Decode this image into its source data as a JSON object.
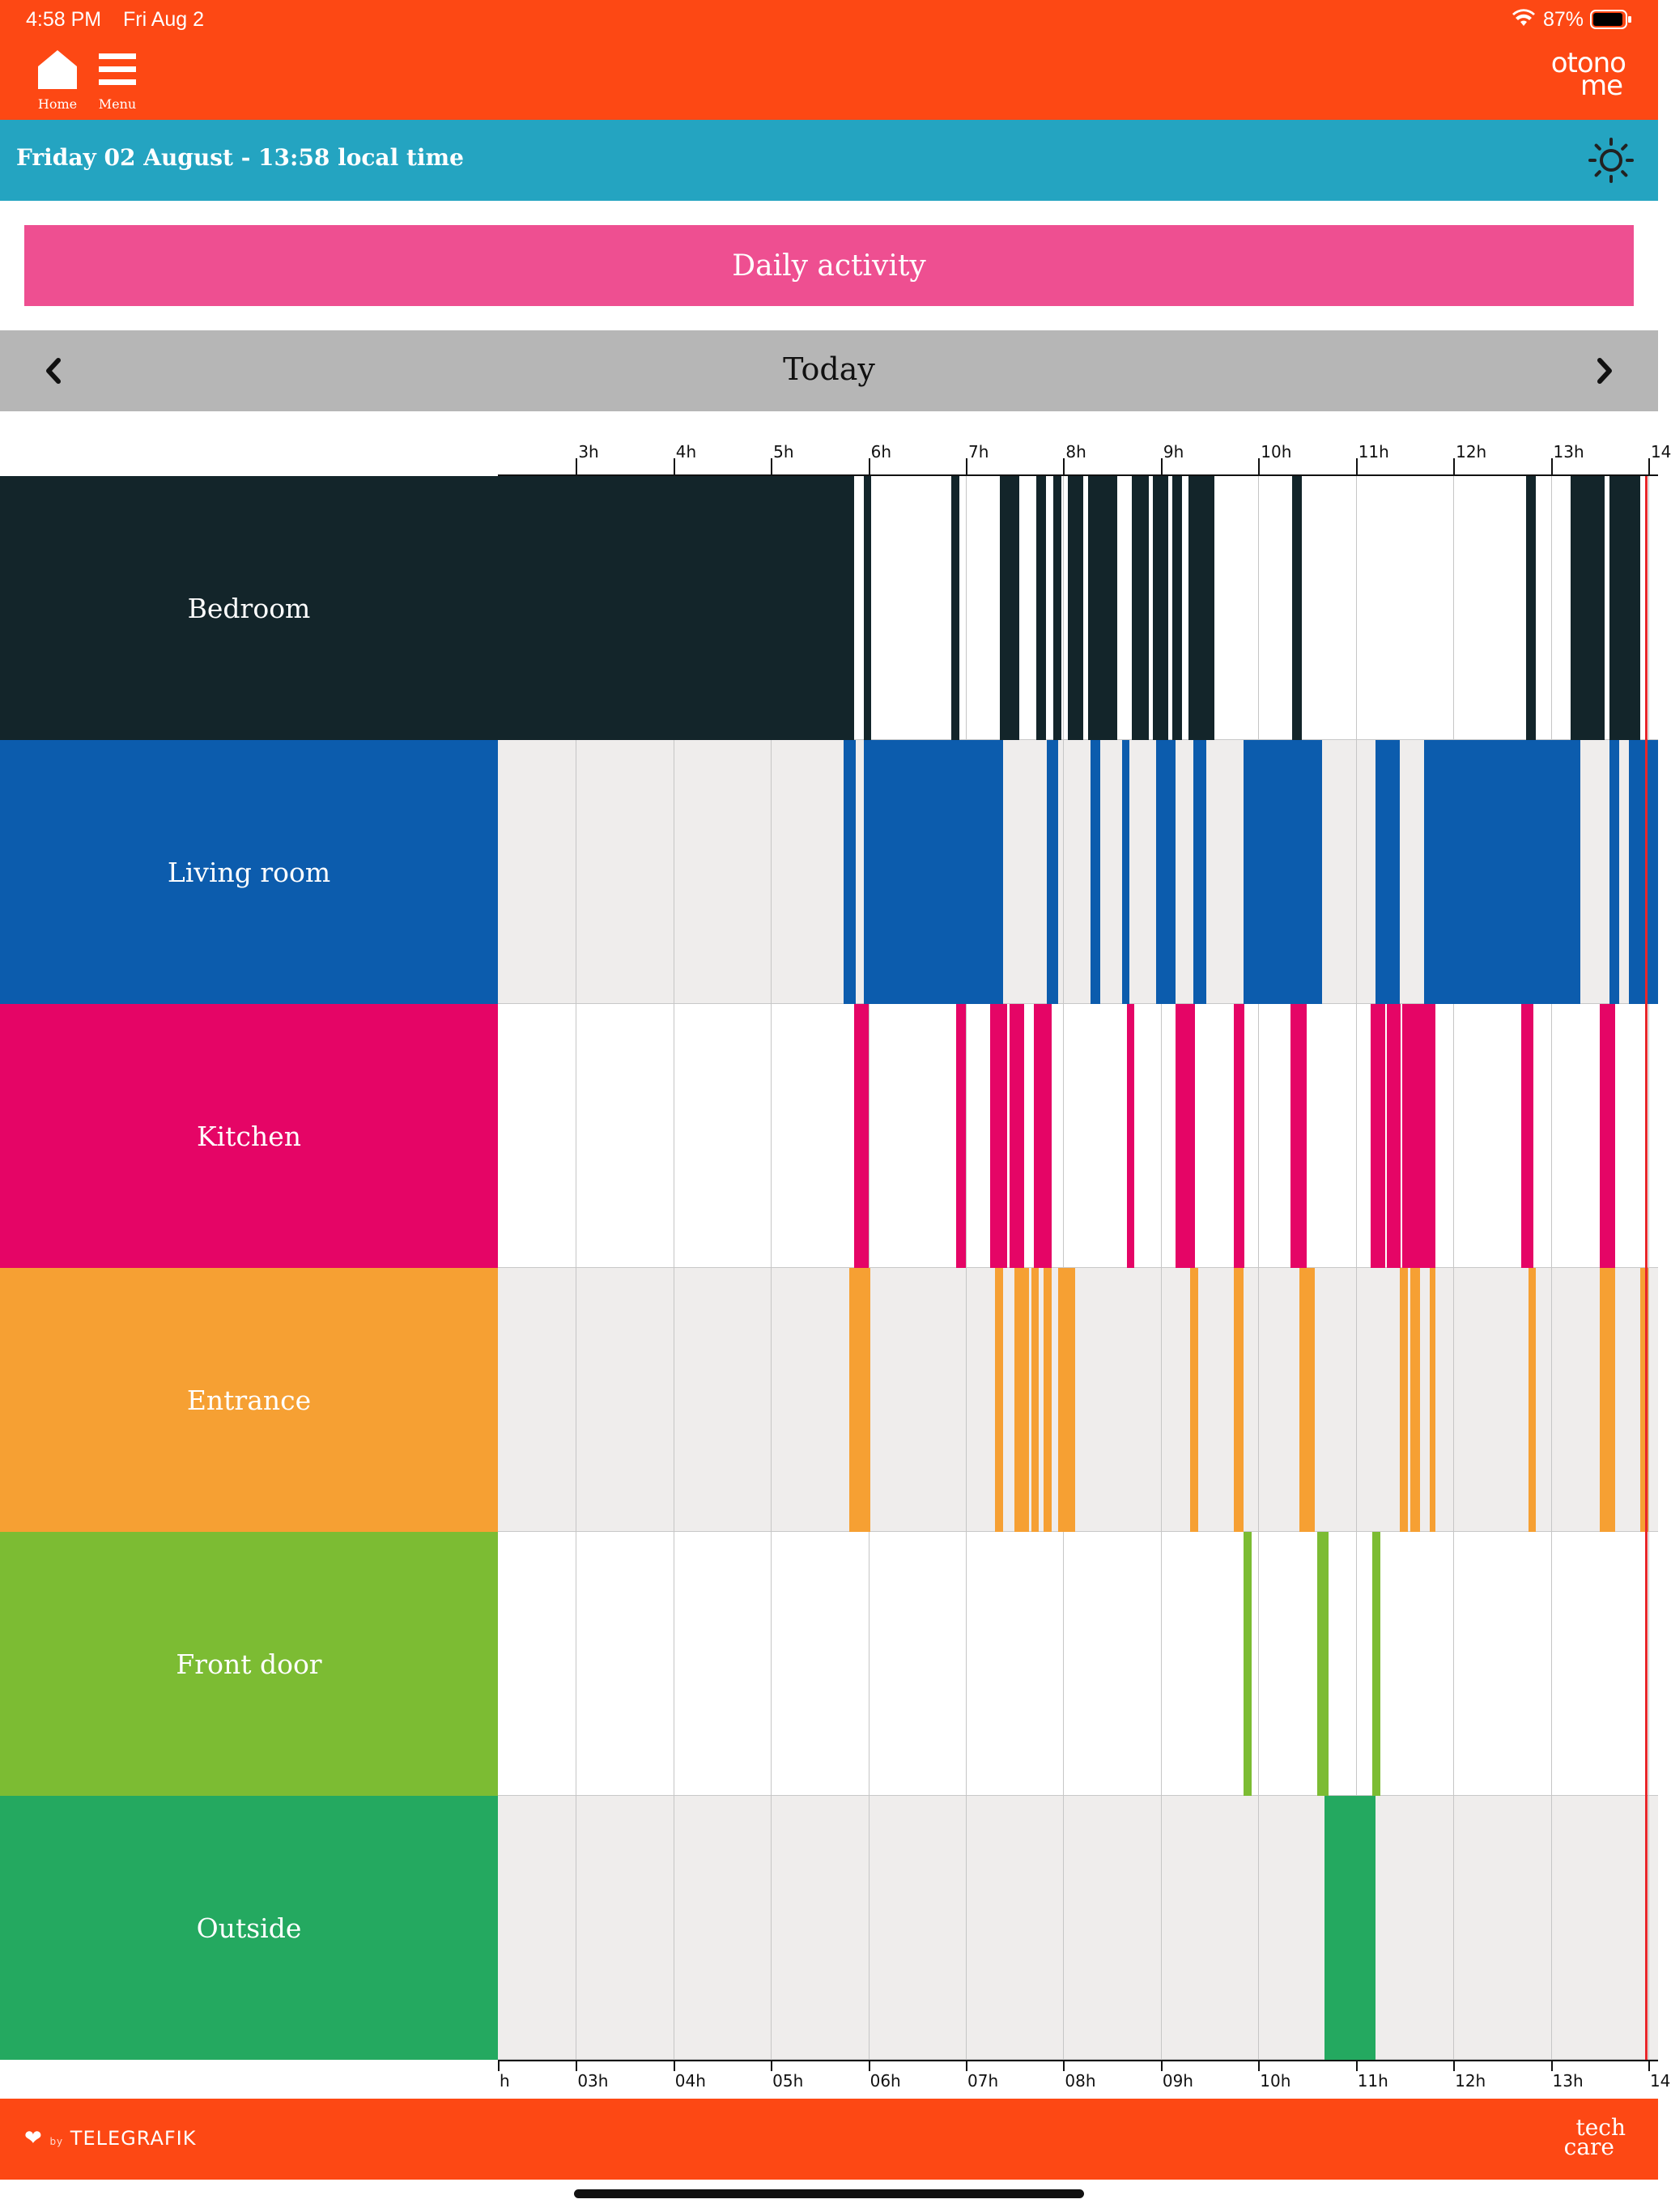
{
  "status_bar": {
    "time": "4:58 PM",
    "date": "Fri Aug 2",
    "battery": "87%"
  },
  "header": {
    "home_label": "Home",
    "menu_label": "Menu",
    "logo_line1": "otono",
    "logo_line2": "me"
  },
  "date_bar": {
    "text": "Friday 02 August - 13:58 local time",
    "icon": "sun-icon"
  },
  "daily_activity_label": "Daily activity",
  "period_nav": {
    "label": "Today",
    "prev_icon": "chevron-left-icon",
    "next_icon": "chevron-right-icon"
  },
  "colors": {
    "header": "#fd4814",
    "date_bar": "#24a4c1",
    "button": "#ee4f91",
    "nav_bar": "#b6b6b6",
    "now_line": "#e8262a"
  },
  "chart_data": {
    "type": "timeline",
    "x_range_hours": [
      2.2,
      14.1
    ],
    "now_hour": 13.97,
    "top_ticks": [
      "3h",
      "4h",
      "5h",
      "6h",
      "7h",
      "8h",
      "9h",
      "10h",
      "11h",
      "12h",
      "13h",
      "14"
    ],
    "bottom_ticks": [
      "h",
      "03h",
      "04h",
      "05h",
      "06h",
      "07h",
      "08h",
      "09h",
      "10h",
      "11h",
      "12h",
      "13h",
      "14"
    ],
    "rows": [
      {
        "name": "Bedroom",
        "color": "#13252a",
        "track": "white",
        "intervals": [
          [
            2.2,
            5.85
          ],
          [
            5.95,
            6.03
          ],
          [
            6.85,
            6.93
          ],
          [
            7.35,
            7.55
          ],
          [
            7.72,
            7.82
          ],
          [
            7.9,
            7.98
          ],
          [
            8.05,
            8.2
          ],
          [
            8.25,
            8.55
          ],
          [
            8.7,
            8.88
          ],
          [
            8.92,
            9.08
          ],
          [
            9.12,
            9.22
          ],
          [
            9.28,
            9.55
          ],
          [
            10.35,
            10.45
          ],
          [
            12.75,
            12.85
          ],
          [
            13.2,
            13.55
          ],
          [
            13.6,
            13.92
          ]
        ]
      },
      {
        "name": "Living room",
        "color": "#0c5cad",
        "track": "grey",
        "intervals": [
          [
            5.75,
            5.87
          ],
          [
            5.95,
            7.38
          ],
          [
            7.83,
            7.95
          ],
          [
            8.28,
            8.38
          ],
          [
            8.6,
            8.68
          ],
          [
            8.95,
            9.15
          ],
          [
            9.33,
            9.47
          ],
          [
            9.85,
            10.65
          ],
          [
            11.2,
            11.45
          ],
          [
            11.7,
            13.3
          ],
          [
            13.6,
            13.7
          ],
          [
            13.8,
            14.1
          ]
        ]
      },
      {
        "name": "Kitchen",
        "color": "#e50566",
        "track": "white",
        "intervals": [
          [
            5.85,
            6.0
          ],
          [
            6.9,
            7.0
          ],
          [
            7.25,
            7.42
          ],
          [
            7.45,
            7.6
          ],
          [
            7.7,
            7.88
          ],
          [
            8.65,
            8.73
          ],
          [
            9.15,
            9.35
          ],
          [
            9.75,
            9.86
          ],
          [
            10.33,
            10.5
          ],
          [
            11.15,
            11.3
          ],
          [
            11.32,
            11.46
          ],
          [
            11.48,
            11.82
          ],
          [
            12.7,
            12.82
          ],
          [
            13.5,
            13.66
          ]
        ]
      },
      {
        "name": "Entrance",
        "color": "#f6a033",
        "track": "grey",
        "intervals": [
          [
            5.8,
            6.02
          ],
          [
            7.3,
            7.38
          ],
          [
            7.5,
            7.65
          ],
          [
            7.67,
            7.75
          ],
          [
            7.8,
            7.88
          ],
          [
            7.95,
            8.12
          ],
          [
            9.3,
            9.38
          ],
          [
            9.75,
            9.85
          ],
          [
            10.42,
            10.58
          ],
          [
            11.45,
            11.53
          ],
          [
            11.56,
            11.66
          ],
          [
            11.76,
            11.82
          ],
          [
            12.77,
            12.85
          ],
          [
            13.5,
            13.66
          ],
          [
            13.92,
            14.0
          ]
        ]
      },
      {
        "name": "Front door",
        "color": "#7cbc33",
        "track": "white",
        "intervals": [
          [
            9.85,
            9.93
          ],
          [
            10.6,
            10.72
          ],
          [
            11.17,
            11.25
          ]
        ]
      },
      {
        "name": "Outside",
        "color": "#24a960",
        "track": "grey",
        "intervals": [
          [
            10.68,
            11.2
          ]
        ]
      }
    ]
  },
  "footer": {
    "left_brand": "TELEGRAFIK",
    "left_prefix": "by",
    "right_line1": "tech",
    "right_line2": "care"
  }
}
